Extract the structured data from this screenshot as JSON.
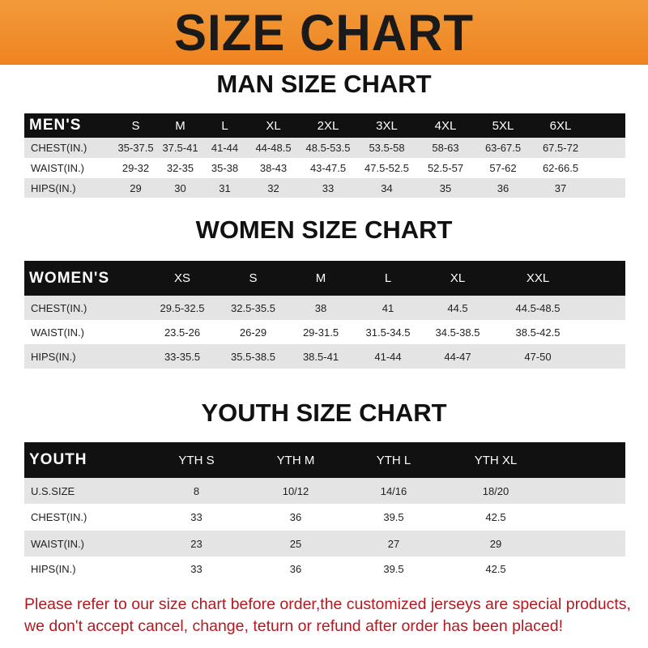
{
  "title": "SIZE CHART",
  "colors": {
    "banner": "#f08a24",
    "header_row": "#111111",
    "stripe": "#e4e4e4",
    "notice": "#b3191f"
  },
  "men": {
    "title": "MAN SIZE CHART",
    "header": [
      "MEN'S",
      "S",
      "M",
      "L",
      "XL",
      "2XL",
      "3XL",
      "4XL",
      "5XL",
      "6XL"
    ],
    "rows": [
      [
        "CHEST(IN.)",
        "35-37.5",
        "37.5-41",
        "41-44",
        "44-48.5",
        "48.5-53.5",
        "53.5-58",
        "58-63",
        "63-67.5",
        "67.5-72"
      ],
      [
        "WAIST(IN.)",
        "29-32",
        "32-35",
        "35-38",
        "38-43",
        "43-47.5",
        "47.5-52.5",
        "52.5-57",
        "57-62",
        "62-66.5"
      ],
      [
        "HIPS(IN.)",
        "29",
        "30",
        "31",
        "32",
        "33",
        "34",
        "35",
        "36",
        "37"
      ]
    ]
  },
  "women": {
    "title": "WOMEN SIZE CHART",
    "header": [
      "WOMEN'S",
      "XS",
      "S",
      "M",
      "L",
      "XL",
      "XXL"
    ],
    "rows": [
      [
        "CHEST(IN.)",
        "29.5-32.5",
        "32.5-35.5",
        "38",
        "41",
        "44.5",
        "44.5-48.5"
      ],
      [
        "WAIST(IN.)",
        "23.5-26",
        "26-29",
        "29-31.5",
        "31.5-34.5",
        "34.5-38.5",
        "38.5-42.5"
      ],
      [
        "HIPS(IN.)",
        "33-35.5",
        "35.5-38.5",
        "38.5-41",
        "41-44",
        "44-47",
        "47-50"
      ]
    ]
  },
  "youth": {
    "title": "YOUTH SIZE CHART",
    "header": [
      "YOUTH",
      "YTH S",
      "YTH M",
      "YTH L",
      "YTH XL"
    ],
    "rows": [
      [
        "U.S.SIZE",
        "8",
        "10/12",
        "14/16",
        "18/20"
      ],
      [
        "CHEST(IN.)",
        "33",
        "36",
        "39.5",
        "42.5"
      ],
      [
        "WAIST(IN.)",
        "23",
        "25",
        "27",
        "29"
      ],
      [
        "HIPS(IN.)",
        "33",
        "36",
        "39.5",
        "42.5"
      ]
    ]
  },
  "notice": {
    "line1": "Please refer to our size chart before order,the customized jerseys are special products,",
    "line2": "we don't accept cancel, change, teturn or refund after order has been placed!"
  }
}
